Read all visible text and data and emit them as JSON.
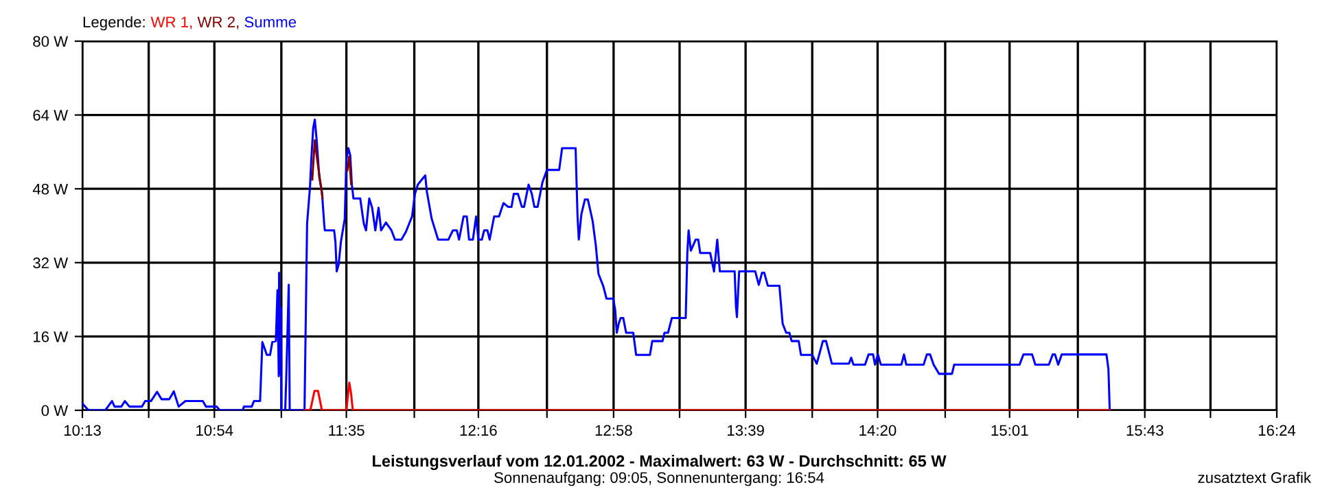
{
  "chart_data": {
    "type": "line",
    "title": "Leistungsverlauf vom 12.01.2002 - Maximalwert: 63 W - Durchschnitt: 65 W",
    "subtitle": "Sonnenaufgang: 09:05, Sonnenuntergang: 16:54",
    "legend_title": "Legende:",
    "legend": "top left",
    "grid": true,
    "marker": "none",
    "line_style": "solid",
    "annotations": [
      "zusatztext Grafik"
    ],
    "xlim": [
      613,
      984
    ],
    "ylim": [
      0,
      80
    ],
    "xticks": [
      {
        "value": 613,
        "label": "10:13"
      },
      {
        "value": 633.6,
        "label": null
      },
      {
        "value": 654,
        "label": "10:54"
      },
      {
        "value": 674.8,
        "label": null
      },
      {
        "value": 695,
        "label": "11:35"
      },
      {
        "value": 716.1,
        "label": null
      },
      {
        "value": 736,
        "label": "12:16"
      },
      {
        "value": 757.3,
        "label": null
      },
      {
        "value": 778,
        "label": "12:58"
      },
      {
        "value": 798.5,
        "label": null
      },
      {
        "value": 819,
        "label": "13:39"
      },
      {
        "value": 839.7,
        "label": null
      },
      {
        "value": 860,
        "label": "14:20"
      },
      {
        "value": 881.0,
        "label": null
      },
      {
        "value": 901,
        "label": "15:01"
      },
      {
        "value": 922.2,
        "label": null
      },
      {
        "value": 943,
        "label": "15:43"
      },
      {
        "value": 963.4,
        "label": null
      },
      {
        "value": 984,
        "label": "16:24"
      }
    ],
    "yticks": [
      {
        "value": 0,
        "label": "0 W"
      },
      {
        "value": 16,
        "label": "16 W"
      },
      {
        "value": 32,
        "label": "32 W"
      },
      {
        "value": 48,
        "label": "48 W"
      },
      {
        "value": 64,
        "label": "64 W"
      },
      {
        "value": 80,
        "label": "80 W"
      }
    ],
    "series": [
      {
        "name": "WR 1,",
        "color": "#ff0000",
        "x": [
          682.0,
          683.8,
          685.1,
          686.2,
          687.4,
          695.0,
          695.9,
          696.4,
          697.0,
          932.1
        ],
        "values": [
          0,
          0,
          4.2,
          4.2,
          0,
          0,
          6,
          4,
          0,
          0
        ]
      },
      {
        "name": "WR 2,",
        "color": "#800000",
        "x": [
          684.4,
          685.2,
          686.0,
          686.8,
          687.6,
          688.0,
          695.3,
          695.9,
          696.5
        ],
        "values": [
          50,
          58.5,
          54,
          50,
          46,
          null,
          52,
          55,
          49
        ]
      },
      {
        "name": "Summe",
        "color": "#0000ff",
        "x": [
          613.0,
          614.9,
          620.1,
          622.2,
          623.0,
          625.1,
          626.2,
          627.6,
          631.5,
          632.5,
          634.3,
          636.2,
          637.6,
          640.0,
          641.4,
          642.9,
          645.0,
          650.4,
          651.4,
          654.7,
          655.7,
          662.8,
          663.2,
          665.6,
          666.3,
          668.2,
          668.9,
          669.4,
          670.3,
          671.3,
          672.0,
          673.1,
          673.6,
          674.0,
          674.1,
          674.4,
          674.7,
          674.8,
          676.0,
          676.3,
          677.1,
          677.4,
          682.0,
          682.8,
          683.7,
          684.1,
          684.7,
          685.2,
          685.8,
          686.6,
          687.4,
          688.1,
          688.3,
          691.2,
          691.6,
          692.0,
          692.6,
          693.3,
          694.5,
          695.0,
          695.6,
          696.2,
          696.7,
          697.2,
          699.3,
          700.4,
          701.1,
          702.1,
          703.0,
          704.0,
          705.0,
          705.8,
          707.3,
          709.0,
          710.1,
          712.1,
          713.5,
          715.4,
          716.3,
          717.2,
          718.9,
          719.5,
          720.0,
          721.5,
          723.5,
          726.7,
          728.1,
          729.3,
          730.0,
          731.4,
          732.4,
          733.1,
          734.3,
          735.3,
          736.0,
          737.1,
          737.8,
          738.8,
          739.5,
          740.9,
          742.4,
          743.8,
          745.2,
          746.3,
          747.0,
          748.3,
          749.5,
          750.2,
          751.6,
          752.6,
          753.4,
          754.4,
          755.9,
          757.3,
          761.1,
          762.0,
          766.2,
          766.8,
          767.2,
          768.0,
          769.1,
          770.0,
          771.5,
          772.5,
          773.3,
          774.8,
          775.8,
          777.9,
          778.5,
          779.0,
          779.6,
          780.2,
          781.0,
          781.9,
          784.1,
          785.0,
          789.3,
          790.0,
          793.2,
          793.8,
          794.9,
          796.1,
          800.4,
          800.9,
          801.3,
          802.0,
          803.5,
          804.3,
          804.9,
          808.0,
          809.2,
          810.2,
          811.0,
          815.6,
          816.0,
          816.3,
          817.0,
          822.0,
          823.1,
          824.1,
          824.8,
          825.9,
          829.5,
          830.5,
          831.6,
          832.6,
          833.3,
          835.5,
          836.2,
          839.7,
          841.1,
          843.0,
          844.0,
          845.8,
          851.1,
          851.8,
          852.5,
          856.1,
          857.2,
          858.6,
          859.2,
          860.1,
          861.0,
          867.4,
          868.2,
          868.9,
          874.3,
          875.3,
          876.3,
          877.4,
          879.1,
          883.1,
          883.8,
          904.1,
          905.3,
          908.0,
          909.0,
          913.2,
          914.4,
          915.1,
          916.1,
          917.2,
          931.1,
          931.7,
          932.1
        ],
        "values": [
          1.5,
          0,
          0,
          2,
          0.8,
          0.8,
          2,
          0.8,
          0.8,
          2,
          2,
          4,
          2.4,
          2.4,
          4.1,
          0.8,
          2,
          2,
          0.8,
          0.8,
          0,
          0,
          0.8,
          0.8,
          2,
          2,
          14.8,
          13.8,
          12,
          12,
          14.8,
          15,
          26,
          7.4,
          29.8,
          7.9,
          22.2,
          0,
          0,
          6.4,
          27.2,
          0,
          0,
          40.5,
          48.4,
          54.3,
          61.2,
          63,
          58.3,
          50.4,
          47.4,
          40.5,
          39,
          39,
          36.5,
          30.1,
          31.6,
          36.5,
          41.5,
          54.3,
          56.8,
          55.3,
          48.9,
          45.9,
          45.9,
          40.5,
          39,
          45.9,
          43.9,
          39,
          43.9,
          39,
          40.7,
          39,
          37,
          37,
          38.7,
          42,
          46.9,
          48.9,
          50.4,
          50.9,
          47.4,
          41.5,
          37,
          37,
          39,
          39,
          37,
          42,
          42,
          37,
          37,
          42,
          37,
          37,
          39,
          39,
          37,
          42,
          42,
          44.9,
          44.1,
          44.1,
          46.9,
          46.9,
          44.1,
          44.1,
          48.9,
          46.9,
          44.1,
          44.1,
          49.4,
          52.1,
          52.1,
          56.8,
          56.8,
          42,
          37,
          42.5,
          45.7,
          45.7,
          41,
          35.6,
          29.6,
          26.9,
          24.2,
          24.2,
          21.7,
          16.8,
          18.8,
          20,
          20,
          16.8,
          16.8,
          12,
          12,
          15,
          15,
          16.8,
          16.8,
          20,
          20,
          34.1,
          39,
          34.6,
          37,
          37,
          34.1,
          34.1,
          30.1,
          37,
          30.1,
          30.1,
          22.7,
          20.2,
          30.1,
          30.1,
          27.2,
          29.8,
          29.8,
          27,
          27,
          18.8,
          16.8,
          16.8,
          15,
          15,
          12,
          12,
          10.1,
          15,
          15,
          10.1,
          10.1,
          11.4,
          9.9,
          9.9,
          12.1,
          12.1,
          9.9,
          12.1,
          9.9,
          9.9,
          12.1,
          9.9,
          9.9,
          12.1,
          12.1,
          9.9,
          7.9,
          7.9,
          9.9,
          9.9,
          12.1,
          12.1,
          9.9,
          9.9,
          12.1,
          12.1,
          9.9,
          12.1,
          12.1,
          8.9,
          0
        ]
      }
    ]
  }
}
